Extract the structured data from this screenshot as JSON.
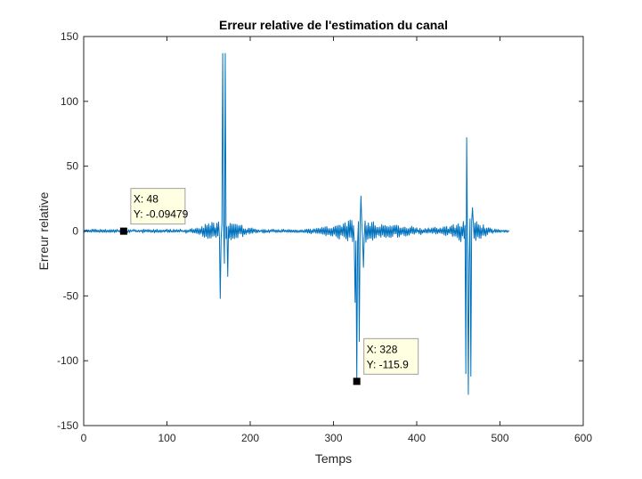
{
  "chart_data": {
    "type": "line",
    "title": "Erreur relative de l'estimation du canal",
    "xlabel": "Temps",
    "ylabel": "Erreur relative",
    "xlim": [
      0,
      600
    ],
    "ylim": [
      -150,
      150
    ],
    "xticks": [
      0,
      100,
      200,
      300,
      400,
      500,
      600
    ],
    "yticks": [
      -150,
      -100,
      -50,
      0,
      50,
      100,
      150
    ],
    "grid": false,
    "line_color": "#0072BD",
    "n_samples": 512,
    "peaks": [
      {
        "x": 164,
        "y": -52
      },
      {
        "x": 167,
        "y": 137
      },
      {
        "x": 169,
        "y": -25
      },
      {
        "x": 170,
        "y": 137
      },
      {
        "x": 173,
        "y": -35
      },
      {
        "x": 326,
        "y": -55
      },
      {
        "x": 328,
        "y": -115.9
      },
      {
        "x": 331,
        "y": -85
      },
      {
        "x": 333,
        "y": 27
      },
      {
        "x": 336,
        "y": -28
      },
      {
        "x": 459,
        "y": -110
      },
      {
        "x": 460,
        "y": 72
      },
      {
        "x": 462,
        "y": -126
      },
      {
        "x": 463,
        "y": -25
      },
      {
        "x": 465,
        "y": -112
      },
      {
        "x": 467,
        "y": 18
      }
    ],
    "datatips": [
      {
        "x": 48,
        "y": -0.09479,
        "x_text": "X: 48",
        "y_text": "Y: -0.09479"
      },
      {
        "x": 328,
        "y": -115.9,
        "x_text": "X: 328",
        "y_text": "Y: -115.9"
      }
    ]
  }
}
